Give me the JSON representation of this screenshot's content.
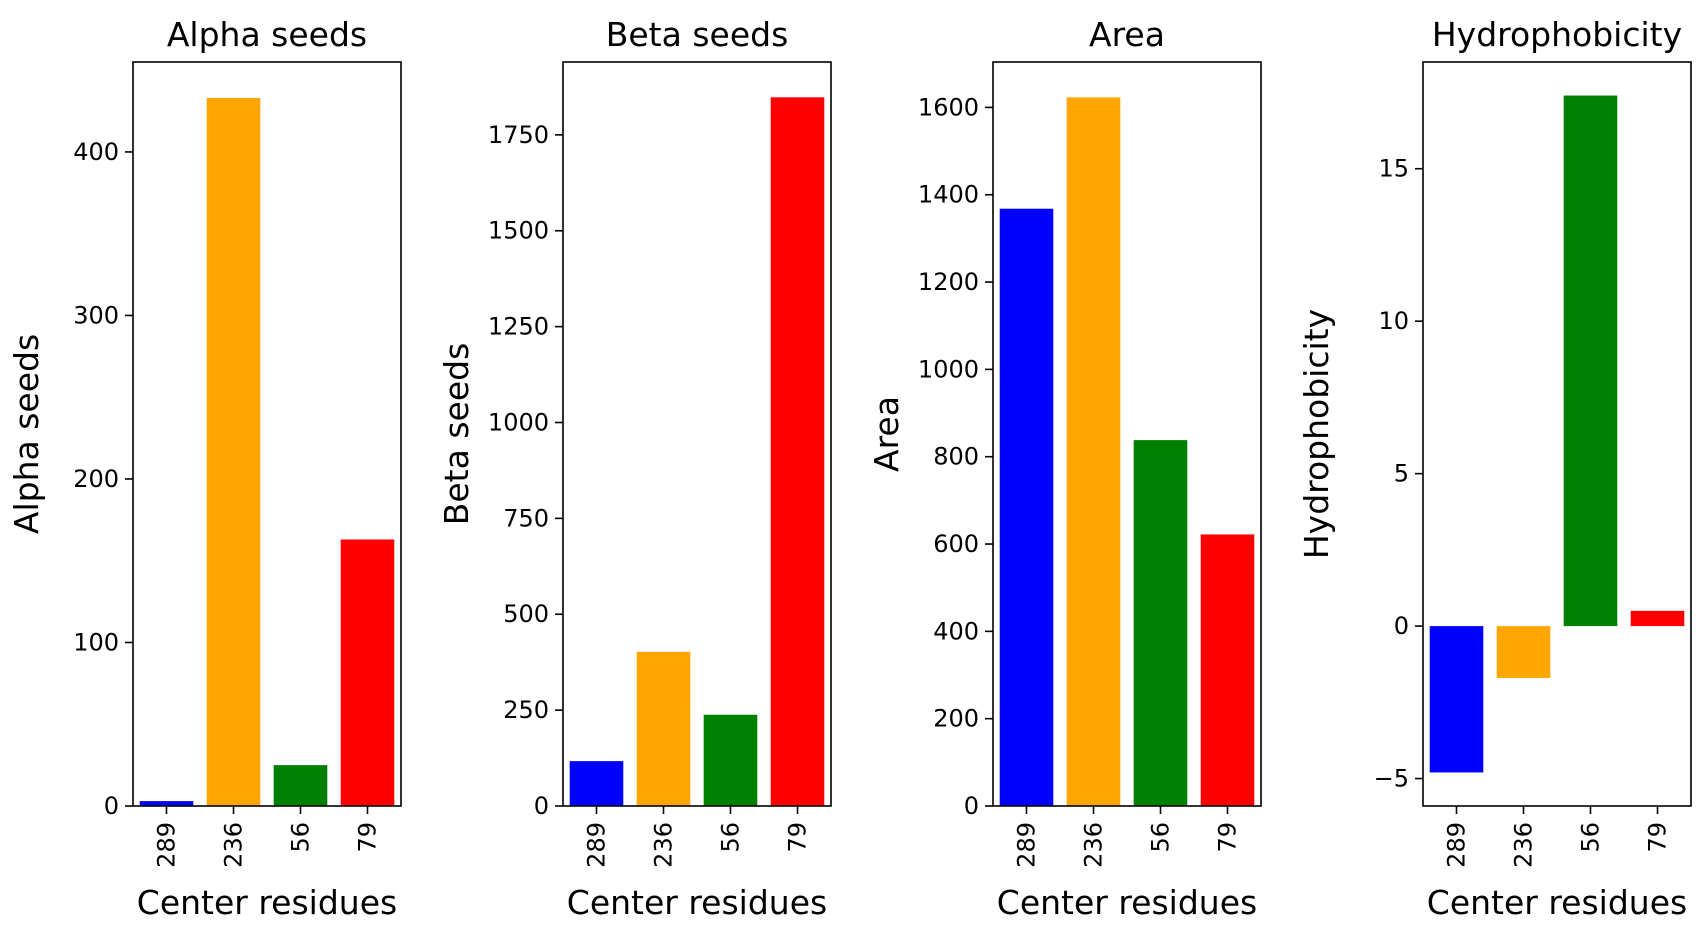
{
  "chart_data": [
    {
      "type": "bar",
      "title": "Alpha seeds",
      "xlabel": "Center residues",
      "ylabel": "Alpha seeds",
      "categories": [
        "289",
        "236",
        "56",
        "79"
      ],
      "values": [
        3,
        433,
        25,
        163
      ],
      "colors": [
        "#0000ff",
        "#ffa500",
        "#008000",
        "#ff0000"
      ],
      "ylim": [
        0,
        455
      ],
      "yticks": [
        0,
        100,
        200,
        300,
        400
      ],
      "ytick_labels": [
        "0",
        "100",
        "200",
        "300",
        "400"
      ],
      "grid": false
    },
    {
      "type": "bar",
      "title": "Beta seeds",
      "xlabel": "Center residues",
      "ylabel": "Beta seeds",
      "categories": [
        "289",
        "236",
        "56",
        "79"
      ],
      "values": [
        117,
        402,
        238,
        1848
      ],
      "colors": [
        "#0000ff",
        "#ffa500",
        "#008000",
        "#ff0000"
      ],
      "ylim": [
        0,
        1940
      ],
      "yticks": [
        0,
        250,
        500,
        750,
        1000,
        1250,
        1500,
        1750
      ],
      "ytick_labels": [
        "0",
        "250",
        "500",
        "750",
        "1000",
        "1250",
        "1500",
        "1750"
      ],
      "grid": false
    },
    {
      "type": "bar",
      "title": "Area",
      "xlabel": "Center residues",
      "ylabel": "Area",
      "categories": [
        "289",
        "236",
        "56",
        "79"
      ],
      "values": [
        1368,
        1623,
        838,
        622
      ],
      "colors": [
        "#0000ff",
        "#ffa500",
        "#008000",
        "#ff0000"
      ],
      "ylim": [
        0,
        1704
      ],
      "yticks": [
        0,
        200,
        400,
        600,
        800,
        1000,
        1200,
        1400,
        1600
      ],
      "ytick_labels": [
        "0",
        "200",
        "400",
        "600",
        "800",
        "1000",
        "1200",
        "1400",
        "1600"
      ],
      "grid": false
    },
    {
      "type": "bar",
      "title": "Hydrophobicity",
      "xlabel": "Center residues",
      "ylabel": "Hydrophobicity",
      "categories": [
        "289",
        "236",
        "56",
        "79"
      ],
      "values": [
        -4.8,
        -1.7,
        17.4,
        0.5
      ],
      "colors": [
        "#0000ff",
        "#ffa500",
        "#008000",
        "#ff0000"
      ],
      "ylim": [
        -5.9,
        18.5
      ],
      "yticks": [
        -5,
        0,
        5,
        10,
        15
      ],
      "ytick_labels": [
        "−5",
        "0",
        "5",
        "10",
        "15"
      ],
      "grid": false
    }
  ]
}
